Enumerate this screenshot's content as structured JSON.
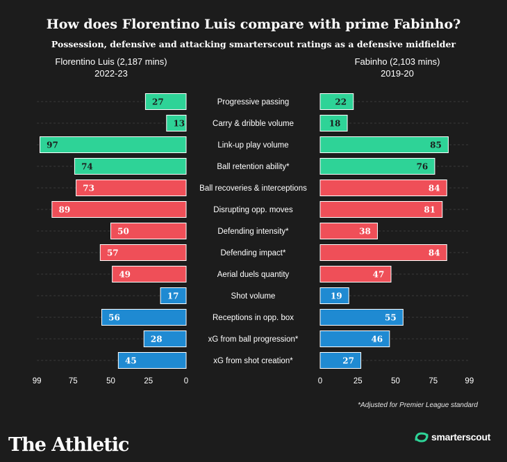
{
  "header": {
    "title": "How does Florentino Luis compare with prime Fabinho?",
    "subtitle": "Possession, defensive and attacking smarterscout ratings as a defensive midfielder"
  },
  "players": {
    "left": {
      "name": "Florentino Luis (2,187 mins)",
      "season": "2022-23"
    },
    "right": {
      "name": "Fabinho (2,103 mins)",
      "season": "2019-20"
    }
  },
  "footer": {
    "note": "*Adjusted for Premier League standard",
    "brand": "The Athletic",
    "partner": "smarterscout"
  },
  "colors": {
    "possession": "#2ed397",
    "defending": "#ef4f58",
    "attacking": "#1f8ad2",
    "background": "#1c1c1c"
  },
  "chart_data": {
    "type": "bar",
    "orientation": "horizontal-butterfly",
    "xlim": [
      0,
      99
    ],
    "left_ticks": [
      "99",
      "75",
      "50",
      "25",
      "0"
    ],
    "right_ticks": [
      "0",
      "25",
      "50",
      "75",
      "99"
    ],
    "categories": [
      "Progressive passing",
      "Carry & dribble volume",
      "Link-up play volume",
      "Ball retention ability*",
      "Ball recoveries & interceptions",
      "Disrupting opp. moves",
      "Defending intensity*",
      "Defending impact*",
      "Aerial duels quantity",
      "Shot volume",
      "Receptions in opp. box",
      "xG from ball progression*",
      "xG from shot creation*"
    ],
    "groups": [
      "possession",
      "possession",
      "possession",
      "possession",
      "defending",
      "defending",
      "defending",
      "defending",
      "defending",
      "attacking",
      "attacking",
      "attacking",
      "attacking"
    ],
    "series": [
      {
        "name": "Florentino Luis (2,187 mins) 2022-23",
        "side": "left",
        "values": [
          27,
          13,
          97,
          74,
          73,
          89,
          50,
          57,
          49,
          17,
          56,
          28,
          45
        ]
      },
      {
        "name": "Fabinho (2,103 mins) 2019-20",
        "side": "right",
        "values": [
          22,
          18,
          85,
          76,
          84,
          81,
          38,
          84,
          47,
          19,
          55,
          46,
          27
        ]
      }
    ]
  }
}
